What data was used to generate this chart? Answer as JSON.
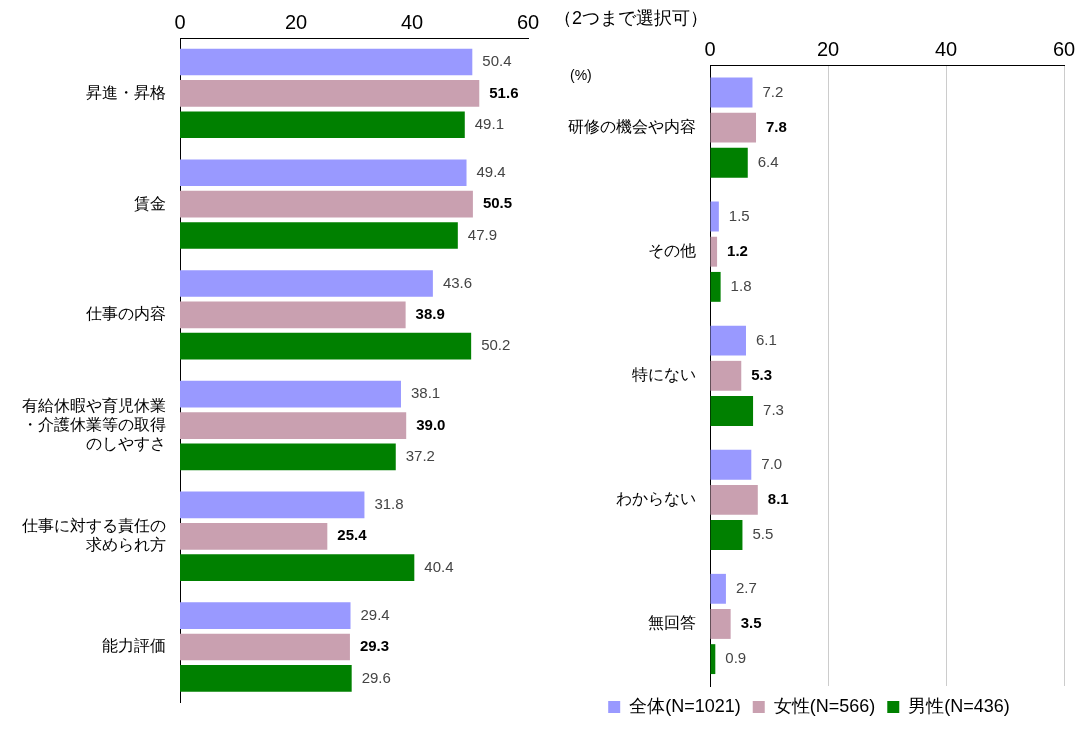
{
  "chart_data": [
    {
      "type": "bar",
      "orientation": "horizontal",
      "categories": [
        "昇進・昇格",
        "賃金",
        "仕事の内容",
        "有給休暇や育児休業・介護休業等の取得のしやすさ",
        "仕事に対する責任の求められ方",
        "能力評価"
      ],
      "series": [
        {
          "color": "#9999ff",
          "values": [
            50.4,
            49.4,
            43.6,
            38.1,
            31.8,
            29.4
          ],
          "value_labels": [
            "50.4",
            "49.4",
            "43.6",
            "38.1",
            "31.8",
            "29.4"
          ]
        },
        {
          "color": "#c9a0b0",
          "values": [
            51.6,
            50.5,
            38.9,
            39.0,
            25.4,
            29.3
          ],
          "value_labels": [
            "51.6",
            "50.5",
            "38.9",
            "39.0",
            "25.4",
            "29.3"
          ]
        },
        {
          "color": "#008000",
          "values": [
            49.1,
            47.9,
            50.2,
            37.2,
            40.4,
            29.6
          ],
          "value_labels": [
            "49.1",
            "47.9",
            "50.2",
            "37.2",
            "40.4",
            "29.6"
          ]
        }
      ],
      "xlim": [
        0,
        60
      ],
      "xticks": [
        0,
        20,
        40,
        60
      ],
      "grid": false,
      "legend": false
    },
    {
      "type": "bar",
      "orientation": "horizontal",
      "title": "（2つまで選択可）",
      "annotations": [
        "(%)"
      ],
      "categories": [
        "研修の機会や内容",
        "その他",
        "特にない",
        "わからない",
        "無回答"
      ],
      "series": [
        {
          "name": "全体(N=1021)",
          "color": "#9999ff",
          "values": [
            7.2,
            1.5,
            6.1,
            7.0,
            2.7
          ],
          "value_labels": [
            "7.2",
            "1.5",
            "6.1",
            "7.0",
            "2.7"
          ]
        },
        {
          "name": "女性(N=566)",
          "color": "#c9a0b0",
          "values": [
            7.8,
            1.2,
            5.3,
            8.1,
            3.5
          ],
          "value_labels": [
            "7.8",
            "1.2",
            "5.3",
            "8.1",
            "3.5"
          ]
        },
        {
          "name": "男性(N=436)",
          "color": "#008000",
          "values": [
            6.4,
            1.8,
            7.3,
            5.5,
            0.9
          ],
          "value_labels": [
            "6.4",
            "1.8",
            "7.3",
            "5.5",
            "0.9"
          ]
        }
      ],
      "xlim": [
        0,
        60
      ],
      "xticks": [
        0,
        20,
        40,
        60
      ],
      "grid": "x",
      "legend": "bottom"
    }
  ]
}
